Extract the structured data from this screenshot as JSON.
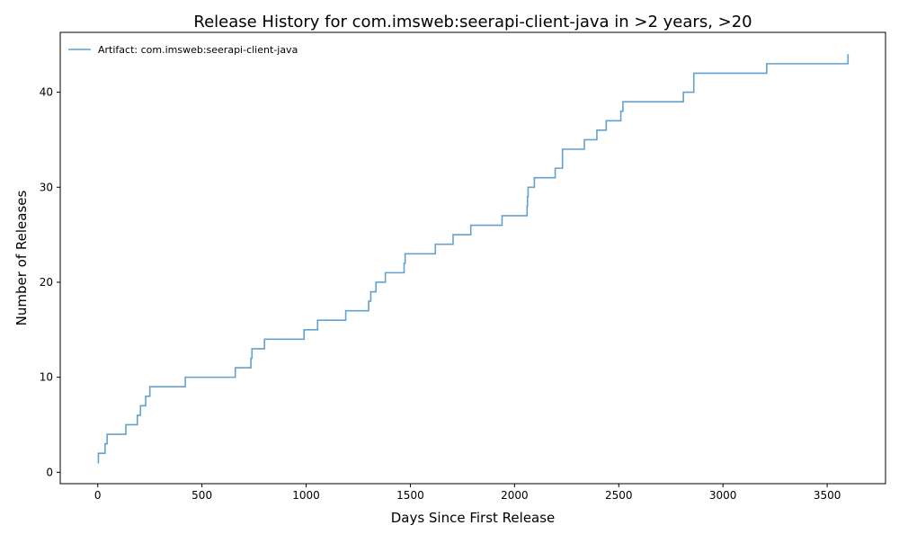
{
  "chart_data": {
    "type": "line",
    "title": "Release History for com.imsweb:seerapi-client-java in >2 years, >20",
    "xlabel": "Days Since First Release",
    "ylabel": "Number of Releases",
    "xlim": [
      -180,
      3780
    ],
    "ylim": [
      -1.2,
      46.3
    ],
    "xticks": [
      0,
      500,
      1000,
      1500,
      2000,
      2500,
      3000,
      3500
    ],
    "yticks": [
      0,
      10,
      20,
      30,
      40
    ],
    "grid": false,
    "legend_position": "top-left",
    "step": "post",
    "series": [
      {
        "name": "Artifact: com.imsweb:seerapi-client-java",
        "color": "#4a90c4",
        "x": [
          0,
          3,
          35,
          45,
          135,
          190,
          205,
          230,
          250,
          420,
          660,
          735,
          740,
          800,
          990,
          1055,
          1190,
          1300,
          1310,
          1335,
          1380,
          1470,
          1475,
          1620,
          1705,
          1790,
          1940,
          2060,
          2062,
          2065,
          2095,
          2195,
          2230,
          2335,
          2395,
          2440,
          2510,
          2520,
          2810,
          2860,
          3210,
          3600
        ],
        "y": [
          1,
          2,
          3,
          4,
          5,
          6,
          7,
          8,
          9,
          10,
          11,
          12,
          13,
          14,
          15,
          16,
          17,
          18,
          19,
          20,
          21,
          22,
          23,
          24,
          25,
          26,
          27,
          28,
          29,
          30,
          31,
          32,
          34,
          35,
          36,
          37,
          38,
          39,
          40,
          42,
          43,
          44
        ]
      }
    ]
  }
}
